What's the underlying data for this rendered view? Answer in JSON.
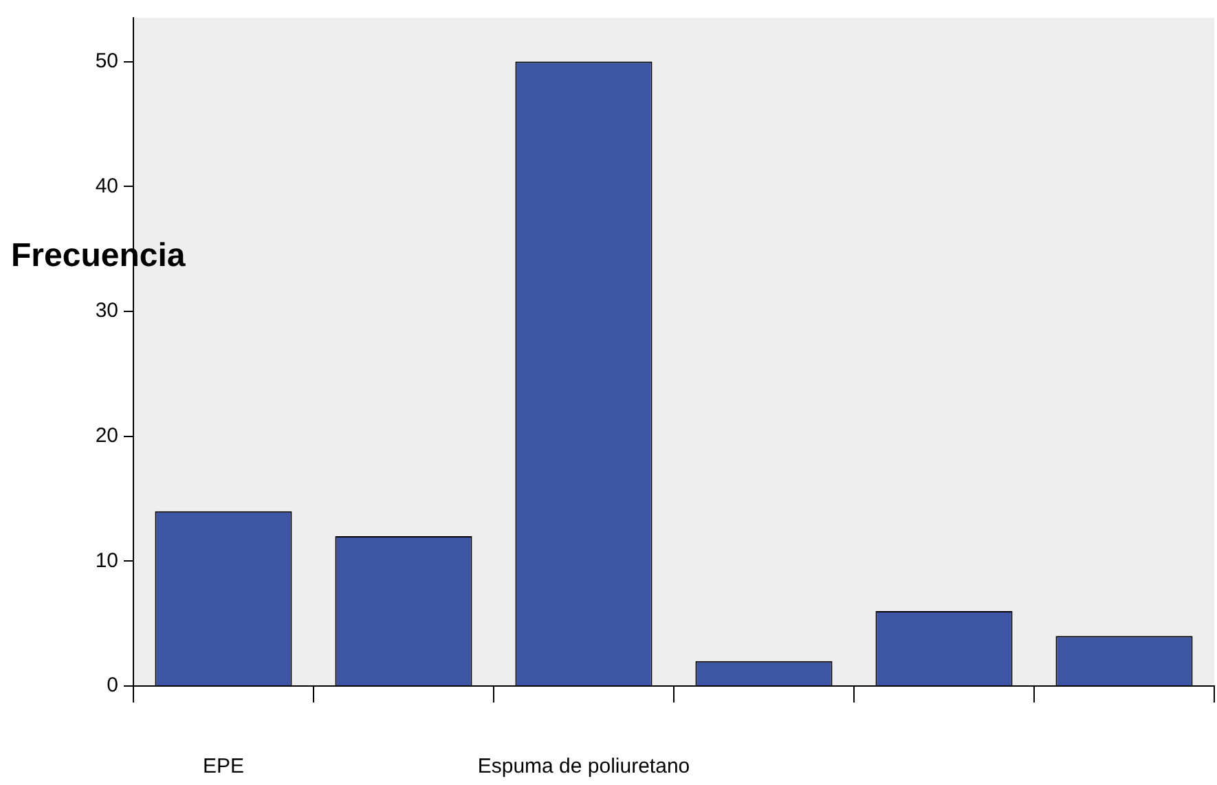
{
  "chart_data": {
    "type": "bar",
    "ylabel": "Frecuencia",
    "categories": [
      "EPE",
      null,
      "Espuma de poliuretano",
      null,
      null,
      null
    ],
    "values": [
      14,
      12,
      50,
      2,
      6,
      4
    ],
    "color": "#3d55a5",
    "ylim": [
      0,
      53.5
    ],
    "yticks": [
      0,
      10,
      20,
      30,
      40,
      50
    ],
    "grid": false,
    "legend": false
  }
}
